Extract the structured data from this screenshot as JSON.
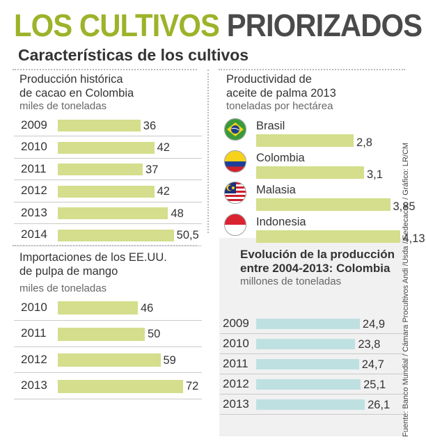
{
  "header": {
    "title_green": "LOS CULTIVOS",
    "title_dark": "PRIORIZADOS",
    "subtitle": "Características de los cultivos"
  },
  "source": "Fuente: Banco Mundial / Cámara Procultivos Andi /Usda / Fedecacao / Gráfico: LR/CM",
  "colors": {
    "green": "#d4de8c",
    "blue": "#bfe0e1",
    "accent": "#9cb32a"
  },
  "chart_data": [
    {
      "id": "cacao",
      "type": "bar",
      "title_lines": [
        "Producción histórica",
        "de cacao en Colombia"
      ],
      "unit": "miles de toneladas",
      "categories": [
        "2009",
        "2010",
        "2011",
        "2012",
        "2013",
        "2014"
      ],
      "values": [
        36,
        42,
        37,
        42,
        48,
        50.5
      ],
      "labels": [
        "36",
        "42",
        "37",
        "42",
        "48",
        "50,5"
      ]
    },
    {
      "id": "palma",
      "type": "bar",
      "title_lines": [
        "Productividad de",
        "aceite de palma 2013"
      ],
      "unit": "toneladas por hectárea",
      "categories": [
        "Brasil",
        "Colombia",
        "Malasia",
        "Indonesia"
      ],
      "values": [
        2.8,
        3.1,
        3.85,
        4.13
      ],
      "labels": [
        "2,8",
        "3,1",
        "3,85",
        "4,13"
      ],
      "flags": [
        "brazil-flag-icon",
        "colombia-flag-icon",
        "malaysia-flag-icon",
        "indonesia-flag-icon"
      ]
    },
    {
      "id": "mango",
      "type": "bar",
      "title_lines": [
        "Importaciones de los EE.UU.",
        "de pulpa de mango"
      ],
      "unit": "miles de toneladas",
      "categories": [
        "2010",
        "2011",
        "2012",
        "2013"
      ],
      "values": [
        46,
        50,
        59,
        72
      ],
      "labels": [
        "46",
        "50",
        "59",
        "72"
      ]
    },
    {
      "id": "produccion",
      "type": "bar",
      "title_lines": [
        "Evolución de la producción",
        "entre 2004-2013: Colombia"
      ],
      "unit": "millones de toneladas",
      "categories": [
        "2009",
        "2010",
        "2011",
        "2012",
        "2013"
      ],
      "values": [
        24.9,
        23.8,
        24.7,
        25.1,
        26.1
      ],
      "labels": [
        "24,9",
        "23,8",
        "24,7",
        "25,1",
        "26,1"
      ]
    }
  ]
}
